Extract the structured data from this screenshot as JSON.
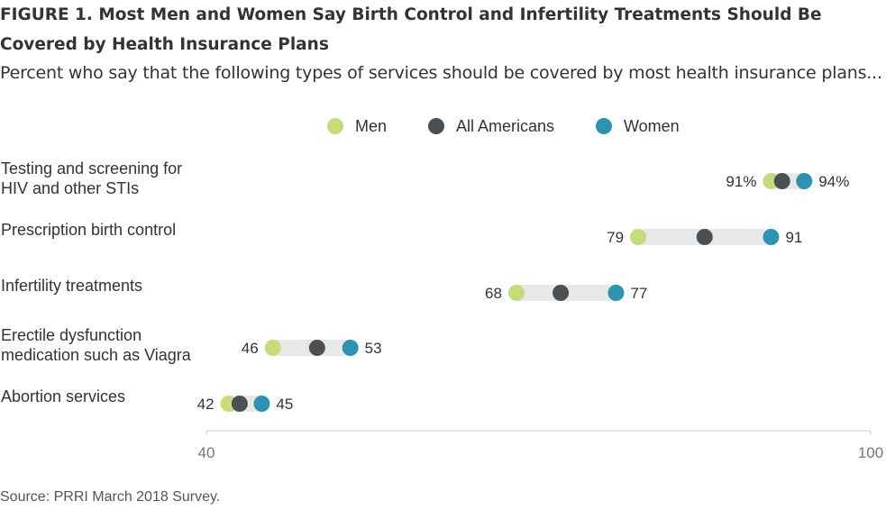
{
  "figure": {
    "title": "FIGURE 1.  Most Men and Women Say Birth Control and Infertility Treatments Should Be Covered by Health Insurance Plans",
    "subtitle": "Percent who say that the following types of services should be covered by most health insurance plans...",
    "source": "Source: PRRI March 2018 Survey."
  },
  "colors": {
    "men": "#c5dc7a",
    "all": "#4a5054",
    "women": "#2e93b0",
    "bar": "#e8e8e8",
    "axis": "#cccccc"
  },
  "chart_data": {
    "type": "dot-range",
    "xlim": [
      40,
      100
    ],
    "xticks": [
      "40",
      "100"
    ],
    "grid": false,
    "legend_position": "top",
    "series": [
      {
        "name": "Men",
        "color_key": "men"
      },
      {
        "name": "All Americans",
        "color_key": "all"
      },
      {
        "name": "Women",
        "color_key": "women"
      }
    ],
    "categories": [
      {
        "label_lines": [
          "Testing and screening for",
          "HIV and other STIs"
        ],
        "men": 91,
        "all": 92,
        "women": 94,
        "men_label": "91%",
        "women_label": "94%"
      },
      {
        "label_lines": [
          "Prescription birth control"
        ],
        "men": 79,
        "all": 85,
        "women": 91,
        "men_label": "79",
        "women_label": "91"
      },
      {
        "label_lines": [
          "Infertility treatments"
        ],
        "men": 68,
        "all": 72,
        "women": 77,
        "men_label": "68",
        "women_label": "77"
      },
      {
        "label_lines": [
          "Erectile dysfunction",
          "medication such as Viagra"
        ],
        "men": 46,
        "all": 50,
        "women": 53,
        "men_label": "46",
        "women_label": "53"
      },
      {
        "label_lines": [
          "Abortion services"
        ],
        "men": 42,
        "all": 43,
        "women": 45,
        "men_label": "42",
        "women_label": "45"
      }
    ]
  }
}
